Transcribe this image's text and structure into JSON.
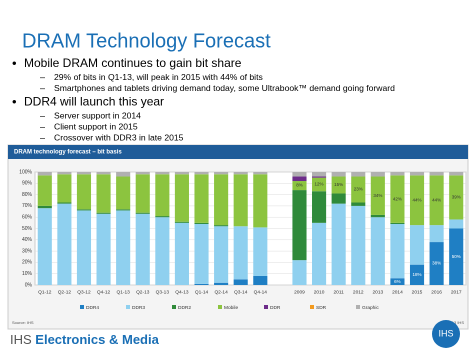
{
  "slide": {
    "title": "DRAM Technology Forecast",
    "bullets": [
      {
        "text": "Mobile DRAM continues to gain bit share",
        "sub": [
          "29% of bits in Q1-13, will peak in 2015 with 44% of bits",
          "Smartphones and tablets driving demand today, some Ultrabook™ demand going forward"
        ]
      },
      {
        "text": "DDR4 will launch this year",
        "sub": [
          "Server support in 2014",
          "Client support in 2015",
          "Crossover with DDR3 in late 2015"
        ]
      }
    ],
    "footer_brand": "IHS",
    "footer_text": "Electronics & Media",
    "logo": "IHS"
  },
  "chart_data": {
    "type": "stacked_bar",
    "title": "DRAM technology forecast – bit basis",
    "source": "Source: IHS",
    "copyright": "© 2013 IHS",
    "categories": [
      "Q1-12",
      "Q2-12",
      "Q3-12",
      "Q4-12",
      "Q1-13",
      "Q2-13",
      "Q3-13",
      "Q4-13",
      "Q1-14",
      "Q2-14",
      "Q3-14",
      "Q4-14",
      null,
      "2009",
      "2010",
      "2011",
      "2012",
      "2013",
      "2014",
      "2015",
      "2016",
      "2017"
    ],
    "ylim": [
      0,
      100
    ],
    "yticks": [
      {
        "value": 0,
        "label": "0%"
      },
      {
        "value": 10,
        "label": "10%"
      },
      {
        "value": 20,
        "label": "20%"
      },
      {
        "value": 30,
        "label": "30%"
      },
      {
        "value": 40,
        "label": "40%"
      },
      {
        "value": 50,
        "label": "50%"
      },
      {
        "value": 60,
        "label": "60%"
      },
      {
        "value": 70,
        "label": "70%"
      },
      {
        "value": 80,
        "label": "80%"
      },
      {
        "value": 90,
        "label": "90%"
      },
      {
        "value": 100,
        "label": "100%"
      }
    ],
    "grid": true,
    "series": [
      {
        "name": "DDR4",
        "color": "#1f7fc4",
        "values": [
          0,
          0,
          0,
          0,
          0,
          0,
          0,
          0,
          1,
          2,
          5,
          8,
          null,
          0,
          0,
          0,
          0,
          0,
          6,
          18,
          38,
          50
        ],
        "value_labels": [
          null,
          null,
          null,
          null,
          null,
          null,
          null,
          null,
          null,
          null,
          null,
          null,
          null,
          null,
          null,
          null,
          null,
          null,
          "6%",
          "18%",
          "38%",
          "50%"
        ]
      },
      {
        "name": "DDR3",
        "color": "#8fd0ef",
        "values": [
          68,
          72,
          66,
          63,
          66,
          63,
          60,
          55,
          53,
          50,
          47,
          43,
          null,
          22,
          55,
          72,
          70,
          60,
          48,
          35,
          15,
          8
        ]
      },
      {
        "name": "DDR2",
        "color": "#2f8a3a",
        "values": [
          2,
          1,
          1,
          1,
          1,
          1,
          1,
          1,
          1,
          1,
          0,
          0,
          null,
          62,
          28,
          9,
          3,
          2,
          1,
          0,
          0,
          0
        ]
      },
      {
        "name": "Mobile",
        "color": "#8cc43f",
        "values": [
          27,
          25,
          31,
          34,
          29,
          34,
          37,
          42,
          43,
          45,
          46,
          47,
          null,
          8,
          12,
          15,
          23,
          34,
          42,
          44,
          44,
          39
        ],
        "value_labels": [
          null,
          null,
          null,
          null,
          null,
          null,
          null,
          null,
          null,
          null,
          null,
          null,
          null,
          "8%",
          "12%",
          "15%",
          "23%",
          "34%",
          "42%",
          "44%",
          "44%",
          "39%"
        ]
      },
      {
        "name": "DDR",
        "color": "#6d2c8a",
        "values": [
          0,
          0,
          0,
          0,
          0,
          0,
          0,
          0,
          0,
          0,
          0,
          0,
          null,
          4,
          1,
          0,
          0,
          0,
          0,
          0,
          0,
          0
        ]
      },
      {
        "name": "SDR",
        "color": "#f39a1e",
        "values": [
          0,
          0,
          0,
          0,
          0,
          0,
          0,
          0,
          0,
          0,
          0,
          0,
          null,
          0,
          0,
          0,
          0,
          0,
          0,
          0,
          0,
          0
        ]
      },
      {
        "name": "Graphic",
        "color": "#b0b0b0",
        "values": [
          3,
          2,
          2,
          2,
          4,
          2,
          2,
          2,
          2,
          2,
          2,
          2,
          null,
          4,
          4,
          4,
          4,
          4,
          3,
          3,
          3,
          3
        ]
      }
    ]
  }
}
